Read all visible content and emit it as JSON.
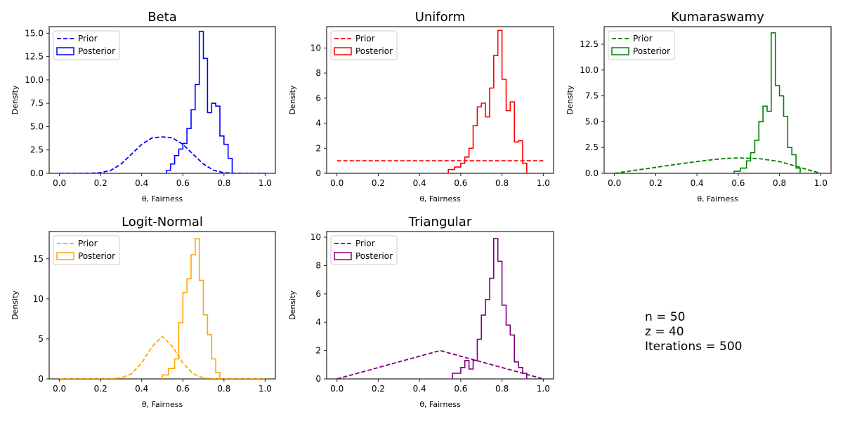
{
  "chart_data": [
    {
      "type": "line",
      "title": "Beta",
      "xlabel": "θ, Fairness",
      "ylabel": "Density",
      "xlim": [
        -0.05,
        1.05
      ],
      "ylim": [
        0,
        15.7
      ],
      "xticks": [
        "0.0",
        "0.2",
        "0.4",
        "0.6",
        "0.8",
        "1.0"
      ],
      "yticks": [
        "0.0",
        "2.5",
        "5.0",
        "7.5",
        "10.0",
        "12.5",
        "15.0"
      ],
      "yticks_values": [
        0,
        2.5,
        5,
        7.5,
        10,
        12.5,
        15
      ],
      "legend_position": "top-left",
      "grid": false,
      "color": "#0000ff",
      "series": [
        {
          "name": "Prior",
          "style": "dashed",
          "x": [
            0,
            0.05,
            0.1,
            0.15,
            0.2,
            0.25,
            0.3,
            0.35,
            0.4,
            0.45,
            0.5,
            0.55,
            0.6,
            0.65,
            0.7,
            0.75,
            0.8,
            0.85,
            0.9,
            0.95,
            1.0
          ],
          "y": [
            0,
            0,
            0,
            0.01,
            0.06,
            0.32,
            0.99,
            2.04,
            3.1,
            3.79,
            3.9,
            3.79,
            3.1,
            2.04,
            0.99,
            0.32,
            0.06,
            0.01,
            0,
            0,
            0
          ]
        },
        {
          "name": "Posterior",
          "style": "step",
          "bins": [
            0.52,
            0.54,
            0.56,
            0.58,
            0.6,
            0.62,
            0.64,
            0.66,
            0.68,
            0.7,
            0.72,
            0.74,
            0.76,
            0.78,
            0.8,
            0.82,
            0.84
          ],
          "values": [
            0.3,
            1.0,
            1.9,
            2.6,
            3.2,
            4.8,
            6.8,
            9.5,
            15.2,
            12.3,
            6.5,
            7.5,
            7.2,
            4.0,
            3.1,
            1.6
          ]
        }
      ]
    },
    {
      "type": "line",
      "title": "Uniform",
      "xlabel": "θ, Fairness",
      "ylabel": "Density",
      "xlim": [
        -0.05,
        1.05
      ],
      "ylim": [
        0,
        11.7
      ],
      "xticks": [
        "0.0",
        "0.2",
        "0.4",
        "0.6",
        "0.8",
        "1.0"
      ],
      "yticks": [
        "0",
        "2",
        "4",
        "6",
        "8",
        "10"
      ],
      "yticks_values": [
        0,
        2,
        4,
        6,
        8,
        10
      ],
      "legend_position": "top-left",
      "grid": false,
      "color": "#ff0000",
      "series": [
        {
          "name": "Prior",
          "style": "dashed",
          "x": [
            0,
            1.0
          ],
          "y": [
            1,
            1
          ]
        },
        {
          "name": "Posterior",
          "style": "step",
          "bins": [
            0.54,
            0.57,
            0.6,
            0.62,
            0.64,
            0.66,
            0.68,
            0.7,
            0.72,
            0.74,
            0.76,
            0.78,
            0.8,
            0.82,
            0.84,
            0.86,
            0.88,
            0.9,
            0.92
          ],
          "values": [
            0.3,
            0.5,
            0.8,
            1.3,
            2.0,
            3.8,
            5.3,
            5.6,
            4.5,
            6.8,
            9.4,
            11.4,
            7.5,
            5.0,
            5.7,
            2.5,
            2.6,
            0.8
          ]
        }
      ]
    },
    {
      "type": "line",
      "title": "Kumaraswamy",
      "xlabel": "θ, Fairness",
      "ylabel": "Density",
      "xlim": [
        -0.05,
        1.05
      ],
      "ylim": [
        0,
        14.2
      ],
      "xticks": [
        "0.0",
        "0.2",
        "0.4",
        "0.6",
        "0.8",
        "1.0"
      ],
      "yticks": [
        "0.0",
        "2.5",
        "5.0",
        "7.5",
        "10.0",
        "12.5"
      ],
      "yticks_values": [
        0,
        2.5,
        5,
        7.5,
        10,
        12.5
      ],
      "legend_position": "top-left",
      "grid": false,
      "color": "#008000",
      "series": [
        {
          "name": "Prior",
          "style": "dashed",
          "x": [
            0,
            0.1,
            0.2,
            0.3,
            0.4,
            0.5,
            0.55,
            0.6,
            0.7,
            0.8,
            0.9,
            0.95,
            1.0
          ],
          "y": [
            0,
            0.29,
            0.58,
            0.87,
            1.14,
            1.37,
            1.45,
            1.49,
            1.43,
            1.14,
            0.57,
            0.28,
            0
          ]
        },
        {
          "name": "Posterior",
          "style": "step",
          "bins": [
            0.58,
            0.61,
            0.64,
            0.66,
            0.68,
            0.7,
            0.72,
            0.74,
            0.76,
            0.78,
            0.8,
            0.82,
            0.84,
            0.86,
            0.88,
            0.9
          ],
          "values": [
            0.2,
            0.5,
            1.2,
            2.0,
            3.2,
            5.0,
            6.5,
            6.0,
            13.6,
            8.5,
            7.5,
            5.5,
            2.5,
            1.8,
            0.5
          ]
        }
      ]
    },
    {
      "type": "line",
      "title": "Logit-Normal",
      "xlabel": "θ, Fairness",
      "ylabel": "Density",
      "xlim": [
        -0.05,
        1.05
      ],
      "ylim": [
        0,
        18.4
      ],
      "xticks": [
        "0.0",
        "0.2",
        "0.4",
        "0.6",
        "0.8",
        "1.0"
      ],
      "yticks": [
        "0",
        "5",
        "10",
        "15"
      ],
      "yticks_values": [
        0,
        5,
        10,
        15
      ],
      "legend_position": "top-left",
      "grid": false,
      "color": "#ffa500",
      "series": [
        {
          "name": "Prior",
          "style": "dashed",
          "x": [
            0,
            0.2,
            0.25,
            0.3,
            0.35,
            0.4,
            0.45,
            0.5,
            0.55,
            0.6,
            0.65,
            0.7,
            0.75,
            0.8,
            1.0
          ],
          "y": [
            0,
            0,
            0.02,
            0.13,
            0.64,
            1.99,
            4.03,
            5.3,
            4.03,
            1.99,
            0.64,
            0.13,
            0.02,
            0,
            0
          ]
        },
        {
          "name": "Posterior",
          "style": "step",
          "bins": [
            0.5,
            0.53,
            0.56,
            0.58,
            0.6,
            0.62,
            0.64,
            0.66,
            0.68,
            0.7,
            0.72,
            0.74,
            0.76,
            0.78
          ],
          "values": [
            0.5,
            1.3,
            2.5,
            7.0,
            10.8,
            12.5,
            15.5,
            17.5,
            12.3,
            8.0,
            5.5,
            2.5,
            0.8
          ]
        }
      ]
    },
    {
      "type": "line",
      "title": "Triangular",
      "xlabel": "θ, Fairness",
      "ylabel": "Density",
      "xlim": [
        -0.05,
        1.05
      ],
      "ylim": [
        0,
        10.4
      ],
      "xticks": [
        "0.0",
        "0.2",
        "0.4",
        "0.6",
        "0.8",
        "1.0"
      ],
      "yticks": [
        "0",
        "2",
        "4",
        "6",
        "8",
        "10"
      ],
      "yticks_values": [
        0,
        2,
        4,
        6,
        8,
        10
      ],
      "legend_position": "top-left",
      "grid": false,
      "color": "#800080",
      "series": [
        {
          "name": "Prior",
          "style": "dashed",
          "x": [
            0,
            0.5,
            1.0
          ],
          "y": [
            0,
            2,
            0
          ]
        },
        {
          "name": "Posterior",
          "style": "step",
          "bins": [
            0.56,
            0.6,
            0.62,
            0.64,
            0.66,
            0.68,
            0.7,
            0.72,
            0.74,
            0.76,
            0.78,
            0.8,
            0.82,
            0.84,
            0.86,
            0.88,
            0.9,
            0.92
          ],
          "values": [
            0.4,
            0.8,
            1.3,
            0.7,
            1.3,
            2.8,
            4.5,
            5.6,
            7.1,
            9.9,
            8.3,
            5.2,
            3.8,
            3.1,
            1.2,
            0.8,
            0.4
          ]
        }
      ]
    }
  ],
  "annotation": {
    "n": "n = 50",
    "z": "z = 40",
    "iterations": "Iterations = 500"
  }
}
